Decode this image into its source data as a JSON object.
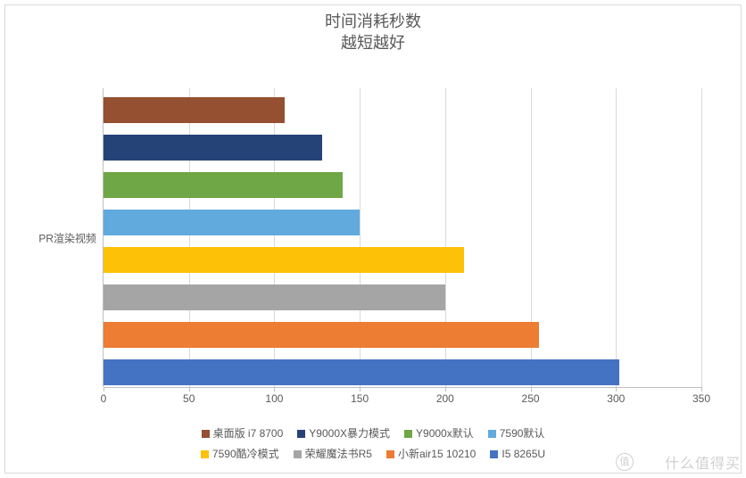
{
  "title": {
    "line1": "时间消耗秒数",
    "line2": "越短越好",
    "fontsize": 18,
    "color": "#595959"
  },
  "chart": {
    "type": "bar-horizontal",
    "category_label": "PR渲染视频",
    "xlim": [
      0,
      350
    ],
    "xtick_step": 50,
    "xticks": [
      0,
      50,
      100,
      150,
      200,
      250,
      300,
      350
    ],
    "background_color": "#ffffff",
    "grid_color": "#d9d9d9",
    "axis_color": "#bfbfbf",
    "tick_fontsize": 12,
    "tick_color": "#595959",
    "bar_gap_ratio": 0.04,
    "series": [
      {
        "name": "桌面版 i7 8700",
        "value": 106,
        "color": "#954f31"
      },
      {
        "name": "Y9000X暴力模式",
        "value": 128,
        "color": "#264378"
      },
      {
        "name": "Y9000x默认",
        "value": 140,
        "color": "#6fa646"
      },
      {
        "name": "7590默认",
        "value": 150,
        "color": "#61aade"
      },
      {
        "name": "7590酷冷模式",
        "value": 211,
        "color": "#fdc208"
      },
      {
        "name": "荣耀魔法书R5",
        "value": 200,
        "color": "#a5a5a5"
      },
      {
        "name": "小新air15 10210",
        "value": 255,
        "color": "#ec7d32"
      },
      {
        "name": "I5 8265U",
        "value": 302,
        "color": "#4573c4"
      }
    ]
  },
  "legend": {
    "rows": [
      [
        "桌面版 i7 8700",
        "Y9000X暴力模式",
        "Y9000x默认",
        "7590默认"
      ],
      [
        "7590酷冷模式",
        "荣耀魔法书R5",
        "小新air15 10210",
        "I5 8265U"
      ]
    ],
    "fontsize": 12,
    "color": "#595959"
  },
  "watermark": {
    "text": "什么值得买",
    "logo_text": "值"
  }
}
